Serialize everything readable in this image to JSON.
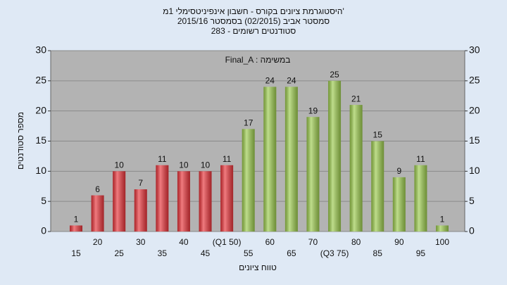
{
  "chart_data": {
    "type": "bar",
    "title": "היסטוגרמת ציונים בקורס - חשבון אינפיניטסימלי 1מ'",
    "subtitle": [
      "2015/16 סמסטר אביב  (02/2015)  בסמסטר",
      "283 - סטודנטים רשומים"
    ],
    "annotation": "Final_A : במשימה",
    "x_label": "טווח ציונים",
    "y_label": "מספר סטודנטים",
    "categories": [
      "15",
      "20",
      "25",
      "30",
      "35",
      "40",
      "45",
      "(Q1 50)",
      "55",
      "60",
      "65",
      "70",
      "(Q3 75)",
      "80",
      "85",
      "90",
      "95",
      "100"
    ],
    "values": [
      1,
      6,
      10,
      7,
      11,
      10,
      10,
      11,
      17,
      24,
      24,
      19,
      25,
      21,
      15,
      9,
      11,
      1
    ],
    "colors": [
      "#e8343a",
      "#e8343a",
      "#e8343a",
      "#e8343a",
      "#e8343a",
      "#e8343a",
      "#e8343a",
      "#e8343a",
      "#9ccb4e",
      "#9ccb4e",
      "#9ccb4e",
      "#9ccb4e",
      "#9ccb4e",
      "#9ccb4e",
      "#9ccb4e",
      "#9ccb4e",
      "#9ccb4e",
      "#9ccb4e"
    ],
    "ylim": [
      0,
      30
    ],
    "yticks": [
      0,
      5,
      10,
      15,
      20,
      25,
      30
    ],
    "y2lim": [
      0,
      30
    ],
    "y2ticks": [
      0,
      5,
      10,
      15,
      20,
      25,
      30
    ],
    "grid": true
  }
}
